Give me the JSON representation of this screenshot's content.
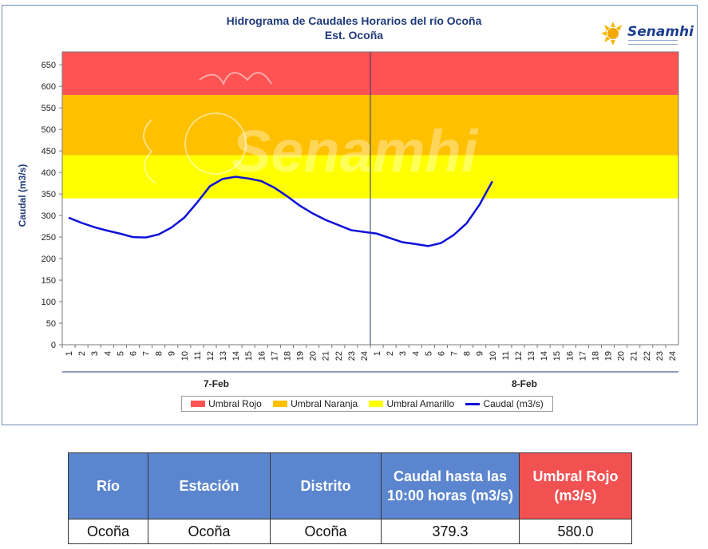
{
  "chart_data": {
    "type": "line",
    "title": "Hidrograma de Caudales Horarios del río Ocoña",
    "subtitle": "Est. Ocoña",
    "ylabel": "Caudal  (m3/s)",
    "xlabel": "",
    "ylim": [
      0,
      680
    ],
    "yticks": [
      0,
      50,
      100,
      150,
      200,
      250,
      300,
      350,
      400,
      450,
      500,
      550,
      600,
      650
    ],
    "x_categories": [
      "1",
      "2",
      "3",
      "4",
      "5",
      "6",
      "7",
      "8",
      "9",
      "10",
      "11",
      "12",
      "13",
      "14",
      "15",
      "16",
      "17",
      "18",
      "19",
      "20",
      "21",
      "22",
      "23",
      "24",
      "1",
      "2",
      "3",
      "4",
      "5",
      "6",
      "7",
      "8",
      "9",
      "10",
      "11",
      "12",
      "13",
      "14",
      "15",
      "16",
      "17",
      "18",
      "19",
      "20",
      "21",
      "22",
      "23",
      "24"
    ],
    "day_groups": [
      {
        "label": "7-Feb",
        "start": 0,
        "end": 23
      },
      {
        "label": "8-Feb",
        "start": 24,
        "end": 47
      }
    ],
    "bands": [
      {
        "name": "Umbral Rojo",
        "from": 580,
        "to": 680,
        "color": "#ff5252"
      },
      {
        "name": "Umbral Naranja",
        "from": 440,
        "to": 580,
        "color": "#ffc000"
      },
      {
        "name": "Umbral Amarillo",
        "from": 340,
        "to": 440,
        "color": "#ffff00"
      }
    ],
    "series": [
      {
        "name": "Caudal (m3/s)",
        "color": "#1010d8",
        "values": [
          295,
          283,
          273,
          265,
          258,
          250,
          249,
          256,
          272,
          295,
          330,
          368,
          385,
          390,
          386,
          380,
          365,
          345,
          323,
          305,
          290,
          278,
          266,
          262,
          258,
          248,
          238,
          234,
          229,
          236,
          255,
          282,
          325,
          379.3
        ]
      }
    ],
    "grid": false,
    "legend_position": "bottom"
  },
  "legend": {
    "items": [
      {
        "label": "Umbral Rojo",
        "color": "#ff5252"
      },
      {
        "label": "Umbral Naranja",
        "color": "#ffc000"
      },
      {
        "label": "Umbral Amarillo",
        "color": "#ffff00"
      },
      {
        "label": "Caudal (m3/s)",
        "color": "#1010d8"
      }
    ]
  },
  "logo": {
    "text": "Senamhi",
    "watermark": "Senamhi"
  },
  "table": {
    "headers": [
      "Río",
      "Estación",
      "Distrito",
      "Caudal hasta las 10:00 horas (m3/s)",
      "Umbral  Rojo (m3/s)"
    ],
    "row": [
      "Ocoña",
      "Ocoña",
      "Ocoña",
      "379.3",
      "580.0"
    ]
  }
}
